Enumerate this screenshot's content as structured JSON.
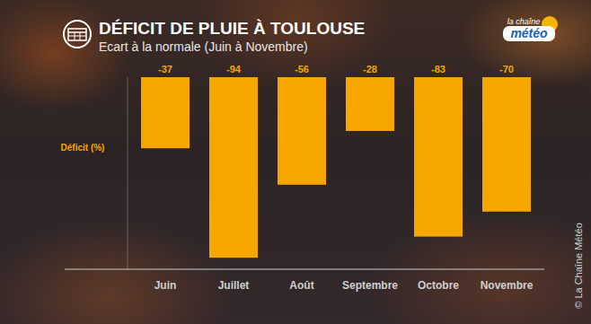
{
  "chart_data": {
    "type": "bar",
    "title": "DÉFICIT DE PLUIE À TOULOUSE",
    "subtitle": "Ecart à la normale (Juin à Novembre)",
    "y_label": "Déficit (%)",
    "categories": [
      "Juin",
      "Juillet",
      "Août",
      "Septembre",
      "Octobre",
      "Novembre"
    ],
    "values": [
      -37,
      -94,
      -56,
      -28,
      -83,
      -70
    ],
    "color": "#f7a600",
    "ylim": [
      -100,
      0
    ],
    "tick_labels": "x",
    "data_labels": true,
    "grid": false,
    "annotations": [
      "la chaîne",
      "météo",
      "© La Chaîne Météo"
    ]
  }
}
